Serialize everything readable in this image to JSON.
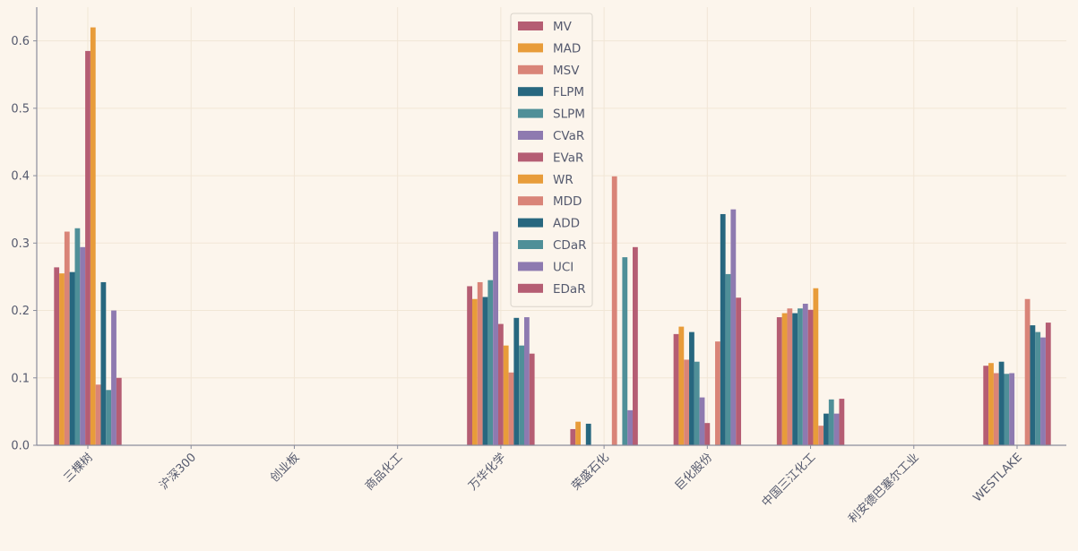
{
  "chart_data": {
    "type": "bar",
    "title": "",
    "xlabel": "",
    "ylabel": "",
    "ylim": [
      0,
      0.65
    ],
    "yticks": [
      "0.0",
      "0.1",
      "0.2",
      "0.3",
      "0.4",
      "0.5",
      "0.6"
    ],
    "grid": true,
    "legend_position": "top-center",
    "categories": [
      "三棵树",
      "沪深300",
      "创业板",
      "商品化工",
      "万华化学",
      "荣盛石化",
      "巨化股份",
      "中国三江化工",
      "利安德巴塞尔工业",
      "WESTLAKE"
    ],
    "series": [
      {
        "name": "MV",
        "color": "#b55d73",
        "values": [
          0.264,
          0,
          0,
          0,
          0.236,
          0.024,
          0.165,
          0.19,
          0,
          0.118
        ]
      },
      {
        "name": "MAD",
        "color": "#e89c3a",
        "values": [
          0.255,
          0,
          0,
          0,
          0.217,
          0.035,
          0.176,
          0.196,
          0,
          0.122
        ]
      },
      {
        "name": "MSV",
        "color": "#d98478",
        "values": [
          0.317,
          0,
          0,
          0,
          0.242,
          0.0,
          0.127,
          0.203,
          0,
          0.107
        ]
      },
      {
        "name": "FLPM",
        "color": "#27677f",
        "values": [
          0.257,
          0,
          0,
          0,
          0.22,
          0.032,
          0.168,
          0.196,
          0,
          0.124
        ]
      },
      {
        "name": "SLPM",
        "color": "#4f8f98",
        "values": [
          0.322,
          0,
          0,
          0,
          0.245,
          0.0,
          0.124,
          0.203,
          0,
          0.106
        ]
      },
      {
        "name": "CVaR",
        "color": "#8e7ab0",
        "values": [
          0.294,
          0,
          0,
          0,
          0.317,
          0.0,
          0.071,
          0.21,
          0,
          0.107
        ]
      },
      {
        "name": "EVaR",
        "color": "#b55d73",
        "values": [
          0.585,
          0,
          0,
          0,
          0.18,
          0.0,
          0.033,
          0.201,
          0,
          0.0
        ]
      },
      {
        "name": "WR",
        "color": "#e89c3a",
        "values": [
          0.62,
          0,
          0,
          0,
          0.148,
          0.0,
          0.0,
          0.233,
          0,
          0.0
        ]
      },
      {
        "name": "MDD",
        "color": "#d98478",
        "values": [
          0.09,
          0,
          0,
          0,
          0.108,
          0.399,
          0.154,
          0.029,
          0,
          0.217
        ]
      },
      {
        "name": "ADD",
        "color": "#27677f",
        "values": [
          0.242,
          0,
          0,
          0,
          0.189,
          0.0,
          0.343,
          0.047,
          0,
          0.178
        ]
      },
      {
        "name": "CDaR",
        "color": "#4f8f98",
        "values": [
          0.082,
          0,
          0,
          0,
          0.148,
          0.279,
          0.254,
          0.068,
          0,
          0.168
        ]
      },
      {
        "name": "UCI",
        "color": "#8e7ab0",
        "values": [
          0.2,
          0,
          0,
          0,
          0.19,
          0.052,
          0.35,
          0.047,
          0,
          0.16
        ]
      },
      {
        "name": "EDaR",
        "color": "#b55d73",
        "values": [
          0.1,
          0,
          0,
          0,
          0.136,
          0.294,
          0.219,
          0.069,
          0,
          0.182
        ]
      }
    ]
  }
}
